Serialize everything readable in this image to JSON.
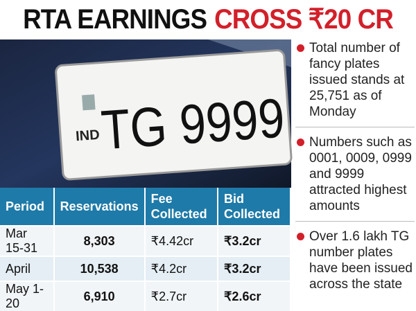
{
  "header": {
    "title_black": "RTA EARNINGS",
    "title_red": "CROSS ₹20 CR"
  },
  "photo": {
    "country_code": "IND",
    "plate_number": "TG 9999"
  },
  "table": {
    "columns": [
      "Period",
      "Reservations",
      "Fee Collected",
      "Bid Collected"
    ],
    "rows": [
      [
        "Mar 15-31",
        "8,303",
        "₹4.42cr",
        "₹3.2cr"
      ],
      [
        "April",
        "10,538",
        "₹4.2cr",
        "₹3.2cr"
      ],
      [
        "May 1-20",
        "6,910",
        "₹2.7cr",
        "₹2.6cr"
      ]
    ]
  },
  "bullets": [
    "Total number of fancy plates issued stands at 25,751 as of Monday",
    "Numbers such as 0001, 0009, 0999 and 9999 attracted highest amounts",
    "Over 1.6 lakh TG number plates have been issued across the state"
  ]
}
